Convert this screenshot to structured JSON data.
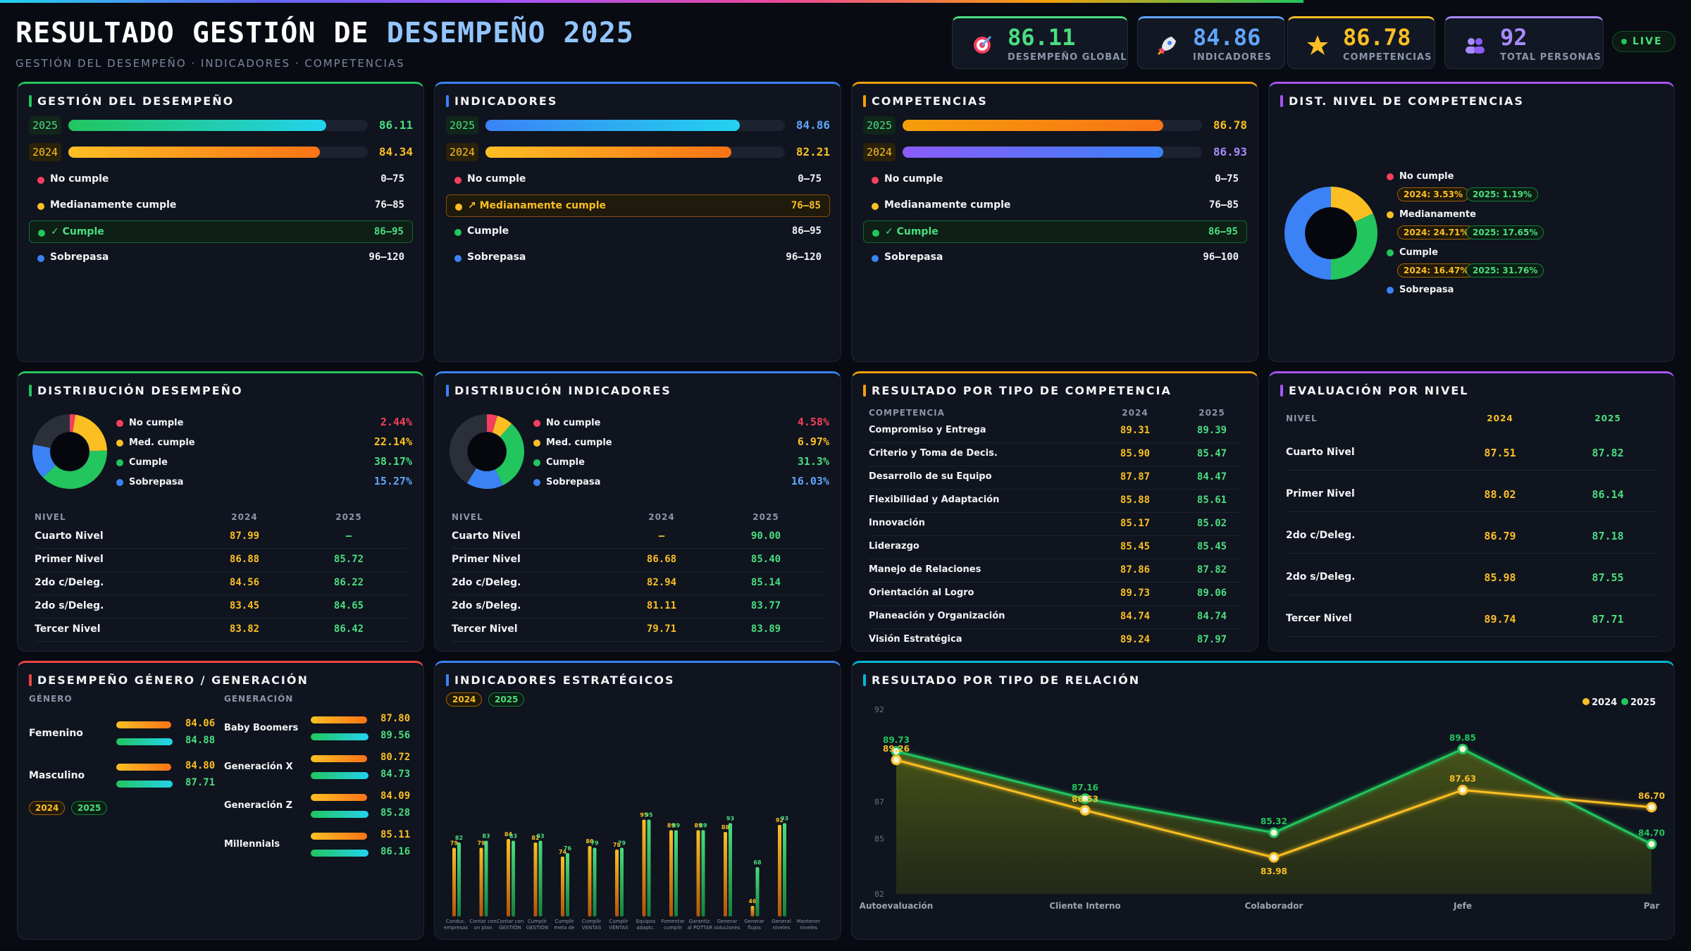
{
  "header": {
    "title_main": "RESULTADO GESTIÓN DE",
    "title_accent": "DESEMPEÑO 2025",
    "subtitle": "GESTIÓN DEL DESEMPEÑO · INDICADORES · COMPETENCIAS",
    "live": "LIVE"
  },
  "kpis": [
    {
      "value": "86.11",
      "label": "DESEMPEÑO GLOBAL",
      "color": "#4ade80",
      "icon": "target-icon"
    },
    {
      "value": "84.86",
      "label": "INDICADORES",
      "color": "#60a5fa",
      "icon": "rocket-icon"
    },
    {
      "value": "86.78",
      "label": "COMPETENCIAS",
      "color": "#fbbf24",
      "icon": "star-icon"
    },
    {
      "value": "92",
      "label": "TOTAL PERSONAS",
      "color": "#a78bfa",
      "icon": "people-icon"
    }
  ],
  "cards": {
    "gestion": {
      "title": "GESTIÓN DEL DESEMPEÑO",
      "bars": [
        {
          "year": "2025",
          "value": "86.11",
          "fraction": 0.86
        },
        {
          "year": "2024",
          "value": "84.34",
          "fraction": 0.84
        }
      ],
      "levels": [
        {
          "name": "No cumple",
          "range": "0–75"
        },
        {
          "name": "Medianamente cumple",
          "range": "76–85"
        },
        {
          "name": "✓ Cumple",
          "range": "86–95"
        },
        {
          "name": "Sobrepasa",
          "range": "96–120"
        }
      ]
    },
    "indicadores": {
      "title": "INDICADORES",
      "bars": [
        {
          "year": "2025",
          "value": "84.86",
          "fraction": 0.85
        },
        {
          "year": "2024",
          "value": "82.21",
          "fraction": 0.82
        }
      ],
      "levels": [
        {
          "name": "No cumple",
          "range": "0–75"
        },
        {
          "name": "↗ Medianamente cumple",
          "range": "76–85"
        },
        {
          "name": "Cumple",
          "range": "86–95"
        },
        {
          "name": "Sobrepasa",
          "range": "96–120"
        }
      ]
    },
    "competencias": {
      "title": "COMPETENCIAS",
      "bars": [
        {
          "year": "2025",
          "value": "86.78",
          "fraction": 0.87
        },
        {
          "year": "2024",
          "value": "86.93",
          "fraction": 0.87
        }
      ],
      "levels": [
        {
          "name": "No cumple",
          "range": "0–75"
        },
        {
          "name": "Medianamente cumple",
          "range": "76–85"
        },
        {
          "name": "✓ Cumple",
          "range": "86–95"
        },
        {
          "name": "Sobrepasa",
          "range": "96–100"
        }
      ]
    },
    "dist_nivel": {
      "title": "DIST. NIVEL DE COMPETENCIAS",
      "legend": [
        "No cumple",
        "Medianamente",
        "Cumple",
        "Sobrepasa"
      ],
      "chips": [
        {
          "y2024": "2024: 3.53%",
          "y2025": "2025: 1.19%"
        },
        {
          "y2024": "2024: 24.71%",
          "y2025": "2025: 17.65%"
        },
        {
          "y2024": "2024: 16.47%",
          "y2025": "2025: 31.76%"
        }
      ]
    },
    "dist_desempeno": {
      "title": "DISTRIBUCIÓN DESEMPEÑO",
      "legend": [
        {
          "name": "No cumple",
          "pct": "2.44%",
          "value": 2.44
        },
        {
          "name": "Med. cumple",
          "pct": "22.14%",
          "value": 22.14
        },
        {
          "name": "Cumple",
          "pct": "38.17%",
          "value": 38.17
        },
        {
          "name": "Sobrepasa",
          "pct": "15.27%",
          "value": 15.27
        }
      ],
      "table": {
        "headers": [
          "NIVEL",
          "2024",
          "2025"
        ],
        "rows": [
          [
            "Cuarto Nivel",
            "87.99",
            "—"
          ],
          [
            "Primer Nivel",
            "86.88",
            "85.72"
          ],
          [
            "2do c/Deleg.",
            "84.56",
            "86.22"
          ],
          [
            "2do s/Deleg.",
            "83.45",
            "84.65"
          ],
          [
            "Tercer Nivel",
            "83.82",
            "86.42"
          ]
        ]
      }
    },
    "dist_indicadores": {
      "title": "DISTRIBUCIÓN INDICADORES",
      "legend": [
        {
          "name": "No cumple",
          "pct": "4.58%",
          "value": 4.58
        },
        {
          "name": "Med. cumple",
          "pct": "6.97%",
          "value": 6.97
        },
        {
          "name": "Cumple",
          "pct": "31.3%",
          "value": 31.3
        },
        {
          "name": "Sobrepasa",
          "pct": "16.03%",
          "value": 16.03
        }
      ],
      "table": {
        "headers": [
          "NIVEL",
          "2024",
          "2025"
        ],
        "rows": [
          [
            "Cuarto Nivel",
            "—",
            "90.00"
          ],
          [
            "Primer Nivel",
            "86.68",
            "85.40"
          ],
          [
            "2do c/Deleg.",
            "82.94",
            "85.14"
          ],
          [
            "2do s/Deleg.",
            "81.11",
            "83.77"
          ],
          [
            "Tercer Nivel",
            "79.71",
            "83.89"
          ]
        ]
      }
    },
    "tipo_competencia": {
      "title": "RESULTADO POR TIPO DE COMPETENCIA",
      "headers": [
        "COMPETENCIA",
        "2024",
        "2025"
      ],
      "rows": [
        [
          "Compromiso y Entrega",
          "89.31",
          "89.39"
        ],
        [
          "Criterio y Toma de Decis.",
          "85.90",
          "85.47"
        ],
        [
          "Desarrollo de su Equipo",
          "87.87",
          "84.47"
        ],
        [
          "Flexibilidad y Adaptación",
          "85.88",
          "85.61"
        ],
        [
          "Innovación",
          "85.17",
          "85.02"
        ],
        [
          "Liderazgo",
          "85.45",
          "85.45"
        ],
        [
          "Manejo de Relaciones",
          "87.86",
          "87.82"
        ],
        [
          "Orientación al Logro",
          "89.73",
          "89.06"
        ],
        [
          "Planeación y Organización",
          "84.74",
          "84.74"
        ],
        [
          "Visión Estratégica",
          "89.24",
          "87.97"
        ]
      ]
    },
    "eval_nivel": {
      "title": "EVALUACIÓN POR NIVEL",
      "headers": [
        "NIVEL",
        "2024",
        "2025"
      ],
      "rows": [
        [
          "Cuarto Nivel",
          "87.51",
          "87.82"
        ],
        [
          "Primer Nivel",
          "88.02",
          "86.14"
        ],
        [
          "2do c/Deleg.",
          "86.79",
          "87.18"
        ],
        [
          "2do s/Deleg.",
          "85.98",
          "87.55"
        ],
        [
          "Tercer Nivel",
          "89.74",
          "87.71"
        ]
      ]
    },
    "genero": {
      "title": "DESEMPEÑO GÉNERO / GENERACIÓN",
      "genero_header": "GÉNERO",
      "generacion_header": "GENERACIÓN",
      "genero": [
        {
          "name": "Femenino",
          "v2024": "84.06",
          "v2025": "84.88"
        },
        {
          "name": "Masculino",
          "v2024": "84.80",
          "v2025": "87.71"
        }
      ],
      "generacion": [
        {
          "name": "Baby Boomers",
          "v2024": "87.80",
          "v2025": "89.56"
        },
        {
          "name": "Generación X",
          "v2024": "80.72",
          "v2025": "84.73"
        },
        {
          "name": "Generación Z",
          "v2024": "84.09",
          "v2025": "85.28"
        },
        {
          "name": "Millennials",
          "v2024": "85.11",
          "v2025": "86.16"
        }
      ],
      "chip2024": "2024",
      "chip2025": "2025"
    },
    "estrategicos": {
      "title": "INDICADORES ESTRATÉGICOS",
      "chip2024": "2024",
      "chip2025": "2025"
    },
    "relacion": {
      "title": "RESULTADO POR TIPO DE RELACIÓN",
      "legend2024": "2024",
      "legend2025": "2025"
    }
  },
  "chart_data": [
    {
      "type": "bar",
      "title": "INDICADORES ESTRATÉGICOS",
      "categories": [
        [
          "Conduc.",
          "empresas"
        ],
        [
          "Contar con",
          "un plan"
        ],
        [
          "Contar con",
          "GESTIÓN"
        ],
        [
          "Cumplir",
          "GESTIÓN"
        ],
        [
          "Cumplir",
          "meta de"
        ],
        [
          "Cumplir",
          "VENTAS"
        ],
        [
          "Cumplir",
          "VENTAS"
        ],
        [
          "Equipos",
          "adaptc."
        ],
        [
          "Fomentar",
          "cumplir"
        ],
        [
          "Garantiz.",
          "al POTTAR"
        ],
        [
          "Generar",
          "soluciones"
        ],
        [
          "Generar",
          "flujos"
        ],
        [
          "General",
          "niveles"
        ],
        [
          "Mantener",
          "niveles"
        ]
      ],
      "series": [
        {
          "name": "2024",
          "values": [
            79,
            79,
            84,
            82,
            74,
            80,
            78,
            95,
            89,
            89,
            88,
            46,
            92,
            null
          ]
        },
        {
          "name": "2025",
          "values": [
            82,
            83,
            83,
            83,
            76,
            79,
            79,
            95,
            89,
            89,
            93,
            68,
            93,
            null
          ]
        }
      ],
      "ylim": [
        40,
        100
      ]
    },
    {
      "type": "line",
      "title": "RESULTADO POR TIPO DE RELACIÓN",
      "categories": [
        "Autoevaluación",
        "Cliente Interno",
        "Colaborador",
        "Jefe",
        "Par"
      ],
      "series": [
        {
          "name": "2024",
          "values": [
            89.26,
            86.53,
            83.98,
            87.63,
            86.7
          ]
        },
        {
          "name": "2025",
          "values": [
            89.73,
            87.16,
            85.32,
            89.85,
            84.7
          ]
        }
      ],
      "yticks": [
        82,
        85,
        87,
        92
      ],
      "ylim": [
        82,
        92
      ]
    }
  ]
}
